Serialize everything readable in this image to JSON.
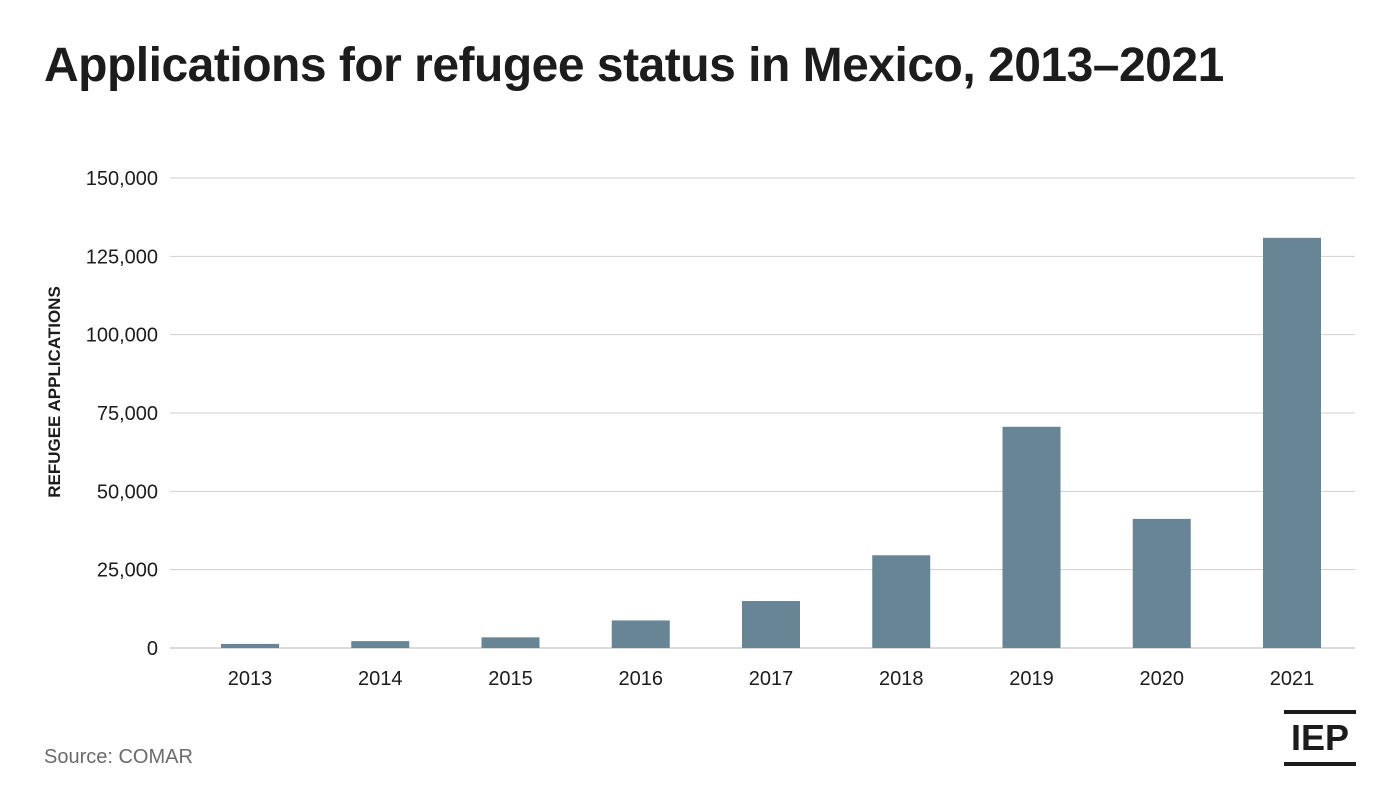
{
  "header": {
    "title": "Applications for refugee status in Mexico, 2013–2021"
  },
  "footer": {
    "source": "Source: COMAR",
    "logo_text": "IEP"
  },
  "colors": {
    "bar": "#688595",
    "grid": "#cfcfcf",
    "text": "#1c1c1c",
    "muted": "#6b6b6b"
  },
  "chart_data": {
    "type": "bar",
    "title": "Applications for refugee status in Mexico, 2013–2021",
    "xlabel": "",
    "ylabel": "REFUGEE APPLICATIONS",
    "categories": [
      "2013",
      "2014",
      "2015",
      "2016",
      "2017",
      "2018",
      "2019",
      "2020",
      "2021"
    ],
    "values": [
      1300,
      2200,
      3400,
      8800,
      15000,
      29600,
      70600,
      41200,
      130900
    ],
    "ylim": [
      0,
      150000
    ],
    "yticks": [
      0,
      25000,
      50000,
      75000,
      100000,
      125000,
      150000
    ],
    "ytick_labels": [
      "0",
      "25,000",
      "50,000",
      "75,000",
      "100,000",
      "125,000",
      "150,000"
    ],
    "grid": true,
    "legend": "none"
  }
}
